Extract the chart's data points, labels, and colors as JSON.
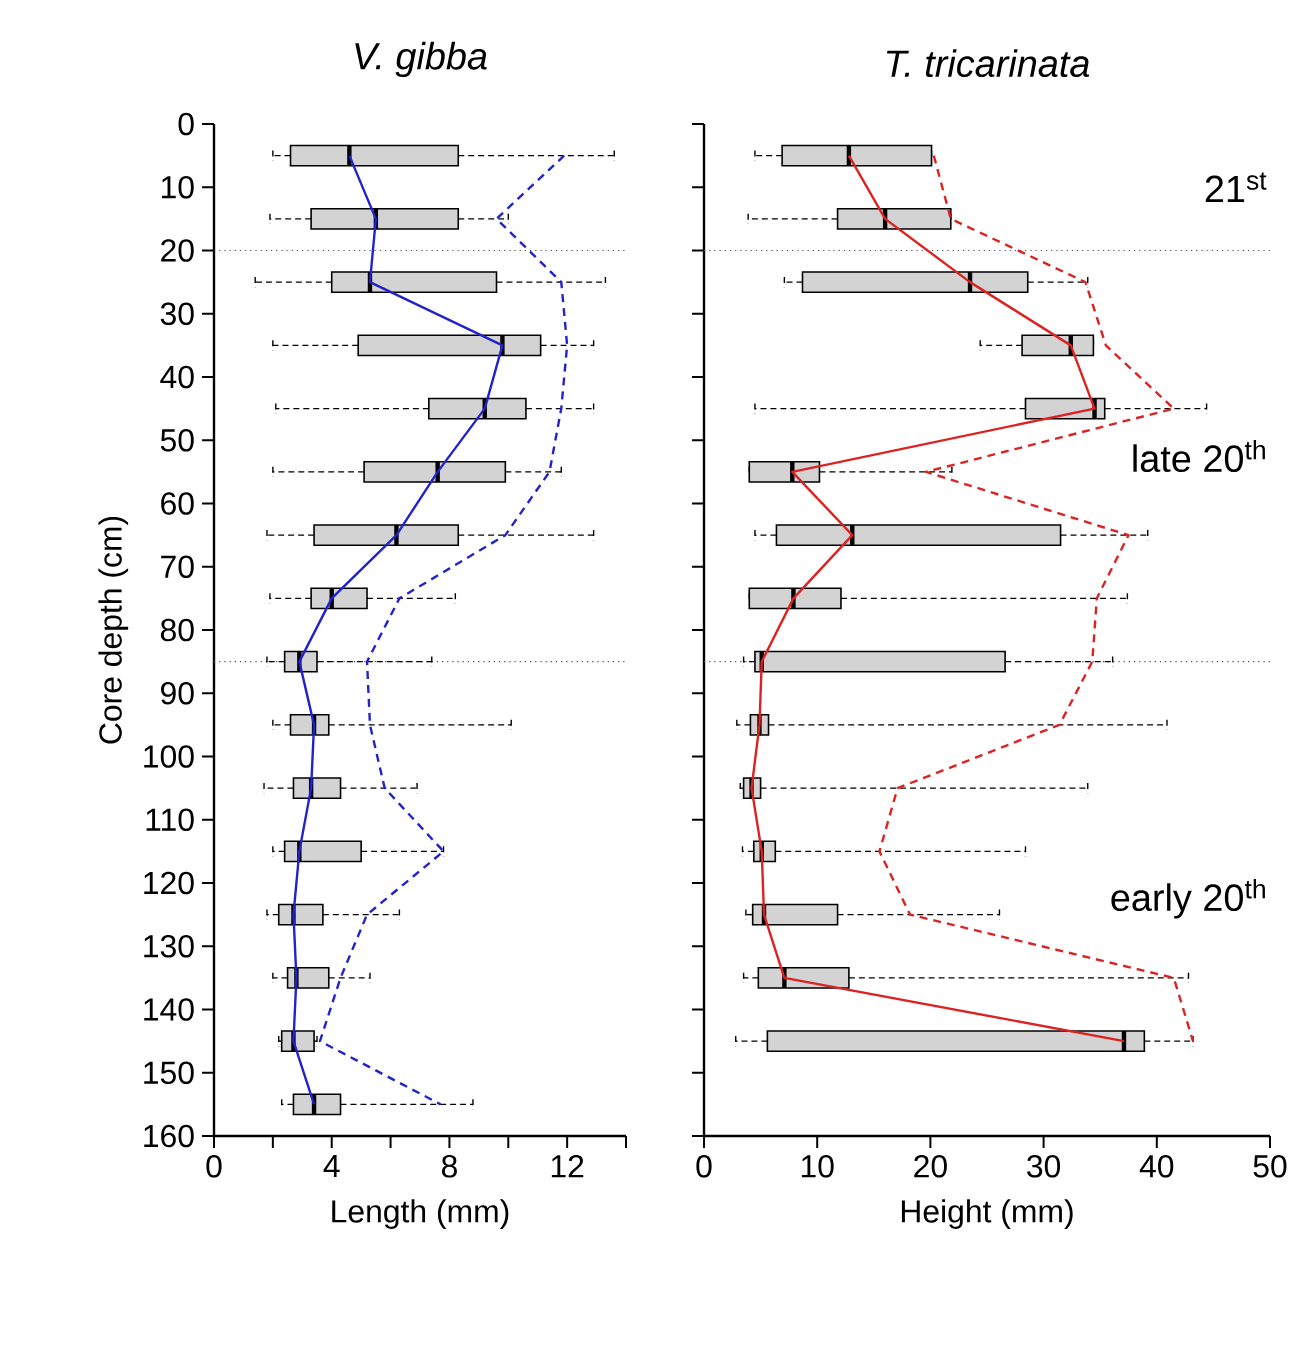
{
  "chart_data": [
    {
      "type": "box",
      "orientation": "horizontal",
      "title": "V. gibba",
      "xlabel": "Length (mm)",
      "ylabel": "Core depth (cm)",
      "xlim": [
        0,
        14
      ],
      "xticks": [
        0,
        {
          "value": 2,
          "label": null
        },
        4,
        {
          "value": 6,
          "label": null
        },
        8,
        {
          "value": 10,
          "label": null
        },
        12,
        {
          "value": 14,
          "label": null
        }
      ],
      "ylim": [
        160,
        0
      ],
      "yticks": [
        0,
        10,
        20,
        30,
        40,
        50,
        60,
        70,
        80,
        90,
        100,
        110,
        120,
        130,
        140,
        150,
        160
      ],
      "ref_lines": [
        {
          "axis": "y",
          "value": 20,
          "line_style": "dotted"
        },
        {
          "axis": "y",
          "value": 85,
          "line_style": "dotted"
        }
      ],
      "series": [
        {
          "type": "box",
          "color": "#d3d3d3",
          "x": [
            5,
            15,
            25,
            35,
            45,
            55,
            65,
            75,
            85,
            95,
            105,
            115,
            125,
            135,
            145,
            155
          ],
          "boxes": [
            {
              "low": 2.0,
              "q1": 2.6,
              "median": 4.6,
              "q3": 8.3,
              "high": 13.6
            },
            {
              "low": 1.9,
              "q1": 3.3,
              "median": 5.5,
              "q3": 8.3,
              "high": 10.0
            },
            {
              "low": 1.4,
              "q1": 4.0,
              "median": 5.3,
              "q3": 9.6,
              "high": 13.3
            },
            {
              "low": 2.0,
              "q1": 4.9,
              "median": 9.8,
              "q3": 11.1,
              "high": 12.9
            },
            {
              "low": 2.1,
              "q1": 7.3,
              "median": 9.2,
              "q3": 10.6,
              "high": 12.9
            },
            {
              "low": 2.0,
              "q1": 5.1,
              "median": 7.6,
              "q3": 9.9,
              "high": 11.8
            },
            {
              "low": 1.8,
              "q1": 3.4,
              "median": 6.2,
              "q3": 8.3,
              "high": 12.9
            },
            {
              "low": 1.9,
              "q1": 3.3,
              "median": 4.0,
              "q3": 5.2,
              "high": 8.2
            },
            {
              "low": 1.8,
              "q1": 2.4,
              "median": 2.9,
              "q3": 3.5,
              "high": 7.4
            },
            {
              "low": 2.0,
              "q1": 2.6,
              "median": 3.4,
              "q3": 3.9,
              "high": 10.1
            },
            {
              "low": 1.7,
              "q1": 2.7,
              "median": 3.3,
              "q3": 4.3,
              "high": 6.9
            },
            {
              "low": 2.0,
              "q1": 2.4,
              "median": 2.9,
              "q3": 5.0,
              "high": 7.8
            },
            {
              "low": 1.8,
              "q1": 2.2,
              "median": 2.7,
              "q3": 3.7,
              "high": 6.3
            },
            {
              "low": 2.0,
              "q1": 2.5,
              "median": 2.8,
              "q3": 3.9,
              "high": 5.3
            },
            {
              "low": 2.2,
              "q1": 2.3,
              "median": 2.7,
              "q3": 3.4,
              "high": 3.5
            },
            {
              "low": 2.3,
              "q1": 2.7,
              "median": 3.4,
              "q3": 4.3,
              "high": 8.8
            }
          ]
        },
        {
          "type": "line",
          "color": "#2222cc",
          "line_style": "solid",
          "x": [
            5,
            15,
            25,
            35,
            45,
            55,
            65,
            75,
            85,
            95,
            105,
            115,
            125,
            135,
            145,
            155
          ],
          "values": [
            4.6,
            5.5,
            5.3,
            9.8,
            9.2,
            7.6,
            6.2,
            4.0,
            2.9,
            3.4,
            3.3,
            2.9,
            2.7,
            2.8,
            2.7,
            3.4
          ]
        },
        {
          "type": "line",
          "color": "#2222cc",
          "line_style": "dashed",
          "x": [
            5,
            15,
            25,
            35,
            45,
            55,
            65,
            75,
            85,
            95,
            105,
            115,
            125,
            135,
            145,
            155
          ],
          "values": [
            11.9,
            9.6,
            11.8,
            12.0,
            11.8,
            11.4,
            9.9,
            6.3,
            5.2,
            5.3,
            5.8,
            7.8,
            5.2,
            4.3,
            3.6,
            7.7
          ]
        }
      ]
    },
    {
      "type": "box",
      "orientation": "horizontal",
      "title": "T. tricarinata",
      "xlabel": "Height (mm)",
      "tick_labels": "x",
      "xlim": [
        0,
        50
      ],
      "xticks": [
        0,
        10,
        20,
        30,
        40,
        50
      ],
      "ylim": [
        160,
        0
      ],
      "yticks": [
        0,
        10,
        20,
        30,
        40,
        50,
        60,
        70,
        80,
        90,
        100,
        110,
        120,
        130,
        140,
        150,
        160
      ],
      "ref_lines": [
        {
          "axis": "y",
          "value": 20,
          "line_style": "dotted"
        },
        {
          "axis": "y",
          "value": 85,
          "line_style": "dotted"
        }
      ],
      "annotations": [
        "21$^{st}$",
        "late 20$^{th}$",
        "early 20$^{th}$"
      ],
      "series": [
        {
          "type": "box",
          "color": "#d3d3d3",
          "x": [
            5,
            15,
            25,
            35,
            45,
            55,
            65,
            75,
            85,
            95,
            105,
            115,
            125,
            135,
            145
          ],
          "boxes": [
            {
              "low": 4.5,
              "q1": 6.9,
              "median": 12.8,
              "q3": 20.1,
              "high": 20.1
            },
            {
              "low": 3.9,
              "q1": 11.8,
              "median": 16.0,
              "q3": 21.8,
              "high": 21.8
            },
            {
              "low": 7.1,
              "q1": 8.7,
              "median": 23.5,
              "q3": 28.6,
              "high": 33.9
            },
            {
              "low": 24.4,
              "q1": 28.1,
              "median": 32.4,
              "q3": 34.4,
              "high": 34.4
            },
            {
              "low": 4.5,
              "q1": 28.4,
              "median": 34.5,
              "q3": 35.4,
              "high": 44.4
            },
            {
              "low": 4.0,
              "q1": 4.0,
              "median": 7.8,
              "q3": 10.2,
              "high": 21.9
            },
            {
              "low": 4.5,
              "q1": 6.4,
              "median": 13.1,
              "q3": 31.5,
              "high": 39.2
            },
            {
              "low": 4.0,
              "q1": 4.0,
              "median": 7.9,
              "q3": 12.1,
              "high": 37.4
            },
            {
              "low": 3.5,
              "q1": 4.5,
              "median": 5.1,
              "q3": 26.6,
              "high": 36.1
            },
            {
              "low": 2.9,
              "q1": 4.1,
              "median": 4.9,
              "q3": 5.7,
              "high": 40.9
            },
            {
              "low": 3.2,
              "q1": 3.5,
              "median": 4.2,
              "q3": 5.0,
              "high": 33.9
            },
            {
              "low": 3.4,
              "q1": 4.4,
              "median": 5.1,
              "q3": 6.3,
              "high": 28.4
            },
            {
              "low": 3.7,
              "q1": 4.3,
              "median": 5.3,
              "q3": 11.8,
              "high": 26.1
            },
            {
              "low": 3.5,
              "q1": 4.8,
              "median": 7.1,
              "q3": 12.8,
              "high": 42.8
            },
            {
              "low": 2.8,
              "q1": 5.6,
              "median": 37.1,
              "q3": 38.9,
              "high": 43.2
            }
          ]
        },
        {
          "type": "line",
          "color": "#dd2222",
          "line_style": "solid",
          "x": [
            5,
            15,
            25,
            35,
            45,
            55,
            65,
            75,
            85,
            95,
            105,
            115,
            125,
            135,
            145
          ],
          "values": [
            12.8,
            16.0,
            23.5,
            32.4,
            34.5,
            7.8,
            13.1,
            7.9,
            5.1,
            4.9,
            4.2,
            5.1,
            5.3,
            7.1,
            37.1
          ]
        },
        {
          "type": "line",
          "color": "#dd2222",
          "line_style": "dashed",
          "x": [
            5,
            15,
            25,
            35,
            45,
            55,
            65,
            75,
            85,
            95,
            105,
            115,
            125,
            135,
            145
          ],
          "values": [
            20.3,
            21.8,
            33.7,
            35.5,
            41.5,
            19.6,
            37.5,
            34.7,
            34.3,
            31.4,
            17.1,
            15.5,
            18.2,
            41.5,
            43.2
          ]
        }
      ]
    }
  ]
}
